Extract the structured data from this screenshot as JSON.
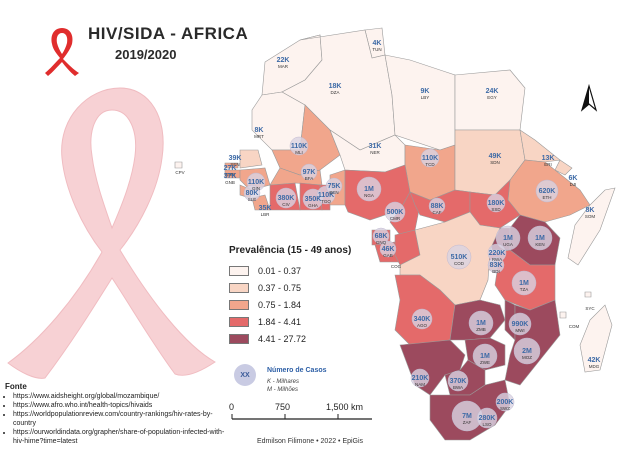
{
  "title": "HIV/SIDA - AFRICA",
  "subtitle": "2019/2020",
  "legend": {
    "title": "Prevalência (15 - 49 anos)",
    "classes": [
      {
        "label": "0.01 - 0.37",
        "color": "#fdf3ef"
      },
      {
        "label": "0.37 - 0.75",
        "color": "#f8d5c4"
      },
      {
        "label": "0.75 - 1.84",
        "color": "#f1a68c"
      },
      {
        "label": "1.84 - 4.41",
        "color": "#e46a6a"
      },
      {
        "label": "4.41 - 27.72",
        "color": "#9c4a5e"
      }
    ]
  },
  "cases_legend": {
    "symbol": "XX",
    "title": "Número de Casos",
    "k_note": "K - Milhares",
    "m_note": "M - Milhões"
  },
  "scale_bar": {
    "labels": [
      "0",
      "750",
      "1,500 km"
    ]
  },
  "author": "Edmilson Filimone  •  2022  •  EpiGis",
  "source": {
    "title": "Fonte",
    "items": [
      "https://www.aidsheight.org/global/mozambique/",
      "https://www.afro.who.int/health-topics/hivaids",
      "https://worldpopulationreview.com/country-rankings/hiv-rates-by-country",
      "https://ourworldindata.org/grapher/share-of-population-infected-with-hiv-hime?time=latest"
    ]
  },
  "countries": [
    {
      "code": "MAR",
      "cases": "22K",
      "class": 0
    },
    {
      "code": "TUN",
      "cases": "4K",
      "class": 0
    },
    {
      "code": "DZA",
      "cases": "18K",
      "class": 0
    },
    {
      "code": "LBY",
      "cases": "9K",
      "class": 0
    },
    {
      "code": "EGY",
      "cases": "24K",
      "class": 0
    },
    {
      "code": "MRT",
      "cases": "8K",
      "class": 0
    },
    {
      "code": "MLI",
      "cases": "110K",
      "class": 2
    },
    {
      "code": "NER",
      "cases": "31K",
      "class": 0
    },
    {
      "code": "TCD",
      "cases": "110K",
      "class": 2
    },
    {
      "code": "SDN",
      "cases": "49K",
      "class": 1
    },
    {
      "code": "ERI",
      "cases": "13K",
      "class": 1
    },
    {
      "code": "DJI",
      "cases": "6K",
      "class": 1
    },
    {
      "code": "SEN",
      "cases": "39K",
      "class": 1
    },
    {
      "code": "GMB",
      "cases": "27K",
      "class": 2
    },
    {
      "code": "GNB",
      "cases": "37K",
      "class": 2
    },
    {
      "code": "GIN",
      "cases": "110K",
      "class": 2
    },
    {
      "code": "SLE",
      "cases": "80K",
      "class": 2
    },
    {
      "code": "LBR",
      "cases": "35K",
      "class": 2
    },
    {
      "code": "CIV",
      "cases": "380K",
      "class": 3
    },
    {
      "code": "BFA",
      "cases": "97K",
      "class": 2
    },
    {
      "code": "GHA",
      "cases": "350K",
      "class": 3
    },
    {
      "code": "TGO",
      "cases": "110K",
      "class": 3
    },
    {
      "code": "BEN",
      "cases": "75K",
      "class": 2
    },
    {
      "code": "NGA",
      "cases": "1M",
      "class": 3
    },
    {
      "code": "ETH",
      "cases": "620K",
      "class": 2
    },
    {
      "code": "SOM",
      "cases": "8K",
      "class": 0
    },
    {
      "code": "CMR",
      "cases": "500K",
      "class": 3
    },
    {
      "code": "CAF",
      "cases": "88K",
      "class": 3
    },
    {
      "code": "SSD",
      "cases": "180K",
      "class": 3
    },
    {
      "code": "GNQ",
      "cases": "68K",
      "class": 3
    },
    {
      "code": "GAB",
      "cases": "46K",
      "class": 3
    },
    {
      "code": "COG",
      "cases": "",
      "class": 3
    },
    {
      "code": "UGA",
      "cases": "1M",
      "class": 4
    },
    {
      "code": "KEN",
      "cases": "1M",
      "class": 4
    },
    {
      "code": "RWA",
      "cases": "220K",
      "class": 3
    },
    {
      "code": "BDI",
      "cases": "83K",
      "class": 2
    },
    {
      "code": "COD",
      "cases": "510K",
      "class": 1
    },
    {
      "code": "TZA",
      "cases": "1M",
      "class": 3
    },
    {
      "code": "AGO",
      "cases": "340K",
      "class": 3
    },
    {
      "code": "ZMB",
      "cases": "1M",
      "class": 4
    },
    {
      "code": "MWI",
      "cases": "990K",
      "class": 4
    },
    {
      "code": "MOZ",
      "cases": "2M",
      "class": 4
    },
    {
      "code": "ZWE",
      "cases": "1M",
      "class": 4
    },
    {
      "code": "NAM",
      "cases": "210K",
      "class": 4
    },
    {
      "code": "BWA",
      "cases": "370K",
      "class": 4
    },
    {
      "code": "SWZ",
      "cases": "200K",
      "class": 4
    },
    {
      "code": "ZAF",
      "cases": "7M",
      "class": 4
    },
    {
      "code": "LSO",
      "cases": "280K",
      "class": 4
    },
    {
      "code": "MDG",
      "cases": "42K",
      "class": 0
    },
    {
      "code": "CPV",
      "cases": "",
      "class": 0
    },
    {
      "code": "COM",
      "cases": "",
      "class": 0
    },
    {
      "code": "SYC",
      "cases": "",
      "class": 0
    }
  ]
}
